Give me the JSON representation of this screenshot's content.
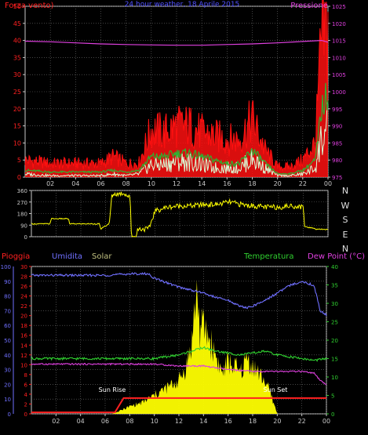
{
  "colors": {
    "wind_avg": "#30b030",
    "wind_gust": "#ff1010",
    "wind_min": "#d8ffd8",
    "pressure": "#e040e0",
    "direction": "#ffff00",
    "rain": "#ff2020",
    "humidity": "#7070ff",
    "temperature": "#30d030",
    "dewpoint": "#e040e0",
    "solar": "#ffff00",
    "frame": "#c8c8c8",
    "grid": "#707070"
  },
  "chart_data": [
    {
      "type": "line",
      "title": "24 hour weather, 18 Aprile 2015",
      "left_label": "Forza vento)",
      "right_label": "Pressione",
      "x_ticks": [
        "02",
        "04",
        "06",
        "08",
        "10",
        "12",
        "14",
        "16",
        "18",
        "20",
        "22",
        "00"
      ],
      "y_left_ticks": [
        0,
        5,
        10,
        15,
        20,
        25,
        30,
        35,
        40,
        45,
        50
      ],
      "y_right_ticks": [
        975,
        980,
        985,
        990,
        995,
        1000,
        1005,
        1010,
        1015,
        1020,
        1025
      ],
      "ylim_left": [
        0,
        50
      ],
      "ylim_right": [
        975,
        1025
      ],
      "series": [
        {
          "axis": "right",
          "x": [
            0,
            2,
            4,
            6,
            8,
            10,
            12,
            14,
            16,
            18,
            20,
            22,
            23.5,
            24
          ],
          "values": [
            1014.8,
            1014.6,
            1014.3,
            1014.0,
            1013.8,
            1013.7,
            1013.6,
            1013.6,
            1013.8,
            1014.0,
            1014.3,
            1014.7,
            1015.0,
            1014.5
          ]
        },
        {
          "x": [
            0,
            2,
            4,
            6,
            7,
            8,
            9,
            10,
            11,
            12,
            13,
            14,
            15,
            16,
            17,
            18,
            19,
            20,
            21,
            22,
            23,
            23.5,
            24
          ],
          "values": [
            5,
            4,
            4,
            4,
            6,
            4,
            4,
            14,
            13,
            15,
            15,
            13,
            12,
            11,
            11,
            17,
            8,
            3,
            3,
            5,
            10,
            40,
            43
          ]
        },
        {
          "x": [
            0,
            2,
            4,
            6,
            7,
            8,
            9,
            10,
            11,
            12,
            13,
            14,
            15,
            16,
            17,
            18,
            19,
            20,
            21,
            22,
            23,
            23.5,
            24
          ],
          "values": [
            2,
            1.5,
            1.5,
            1.5,
            2,
            1.5,
            2,
            6,
            6,
            7,
            7,
            6,
            5,
            4,
            4,
            8,
            4,
            1,
            1,
            2,
            5,
            20,
            25
          ]
        },
        {
          "x": [
            0,
            2,
            4,
            6,
            7,
            8,
            9,
            10,
            11,
            12,
            13,
            14,
            15,
            16,
            17,
            18,
            19,
            20,
            21,
            22,
            23,
            23.5,
            24
          ],
          "values": [
            1,
            0.5,
            0.5,
            0.5,
            1,
            0.5,
            1,
            4,
            4,
            5,
            5,
            4,
            3,
            3,
            3,
            6,
            3,
            0.5,
            0.5,
            1,
            3,
            13,
            15
          ]
        }
      ]
    },
    {
      "type": "line",
      "y_ticks": [
        0,
        90,
        180,
        270,
        360
      ],
      "ylim": [
        0,
        360
      ],
      "compass_labels": [
        "N",
        "W",
        "S",
        "E",
        "N"
      ],
      "series": [
        {
          "x": [
            0,
            1.5,
            1.6,
            3,
            3.1,
            5.5,
            5.6,
            6.3,
            6.5,
            6.6,
            7.5,
            8,
            8.1,
            8.5,
            8.6,
            9.5,
            10,
            11,
            12,
            13,
            14,
            15,
            16,
            17,
            18,
            19,
            20,
            21,
            22,
            22.1,
            23,
            24
          ],
          "values": [
            100,
            100,
            140,
            140,
            100,
            100,
            60,
            100,
            310,
            330,
            340,
            300,
            0,
            0,
            60,
            60,
            200,
            230,
            240,
            240,
            250,
            250,
            270,
            250,
            240,
            230,
            230,
            240,
            230,
            80,
            60,
            55
          ]
        }
      ]
    },
    {
      "type": "area",
      "left_label": "Pioggia",
      "label_humidity": "Umidita",
      "label_solar": "Solar",
      "label_temperature": "Temperatura",
      "label_dewpoint": "Dew Point (°C)",
      "sunrise_label": "Sun Rise",
      "sunset_label": "Sun Set",
      "x_ticks": [
        "02",
        "04",
        "06",
        "08",
        "10",
        "12",
        "14",
        "16",
        "18",
        "20",
        "22",
        "00"
      ],
      "rain_ticks": [
        0,
        2,
        4,
        6,
        8,
        10,
        12,
        14,
        16,
        18,
        20,
        22,
        24,
        26,
        28,
        30
      ],
      "humidity_ticks": [
        0,
        10,
        20,
        30,
        40,
        50,
        60,
        70,
        80,
        90,
        100
      ],
      "temp_ticks": [
        0,
        5,
        10,
        15,
        20,
        25,
        30,
        35,
        40
      ],
      "ylim_humidity": [
        0,
        100
      ],
      "ylim_temp": [
        0,
        40
      ],
      "rain": {
        "x": [
          0,
          6.8,
          7.5,
          24
        ],
        "values": [
          0.3,
          0.3,
          3.2,
          3.2
        ]
      },
      "humidity": {
        "x": [
          0,
          2,
          4,
          6,
          8,
          9.5,
          10,
          11,
          12,
          13,
          14,
          15,
          16,
          16.5,
          17,
          17.5,
          18,
          19,
          20,
          21,
          22,
          23,
          23.5,
          24
        ],
        "values": [
          94,
          94,
          94,
          94,
          95,
          95,
          92,
          89,
          86,
          84,
          82,
          79,
          77,
          75,
          73,
          72,
          73,
          77,
          82,
          87,
          90,
          87,
          70,
          67
        ]
      },
      "temperature": {
        "x": [
          0,
          2,
          4,
          6,
          8,
          10,
          12,
          13,
          14,
          15,
          16,
          17,
          18,
          19,
          20,
          21,
          22,
          23,
          24
        ],
        "values": [
          15,
          15,
          15,
          15,
          15,
          15,
          16,
          17,
          18,
          17,
          16.5,
          16,
          16.5,
          17,
          16,
          15.5,
          15,
          14.5,
          15
        ]
      },
      "dewpoint": {
        "x": [
          0,
          2,
          4,
          6,
          8,
          10,
          12,
          14,
          16,
          18,
          20,
          22,
          23,
          23.5,
          24
        ],
        "values": [
          13.5,
          13.5,
          13.5,
          13.5,
          13.5,
          13.5,
          13,
          13,
          12,
          11.5,
          11.5,
          11.5,
          11,
          9,
          8
        ]
      },
      "solar": {
        "x": [
          0,
          6.5,
          7,
          8,
          9,
          10,
          11,
          11.5,
          12,
          12.5,
          13,
          13.3,
          13.5,
          13.7,
          14,
          14.5,
          15,
          15.5,
          16,
          16.5,
          17,
          17.5,
          18,
          18.5,
          19,
          19.5,
          20,
          24
        ],
        "values": [
          0,
          0,
          0.5,
          2,
          3,
          5,
          7,
          8,
          9,
          12,
          18,
          28,
          34,
          22,
          24,
          20,
          16,
          11,
          14,
          13,
          11,
          15,
          13,
          11,
          9,
          5,
          0,
          0
        ]
      }
    }
  ]
}
